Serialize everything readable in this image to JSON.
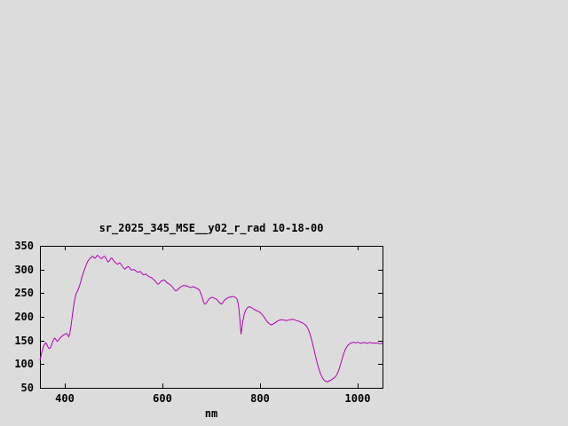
{
  "chart_data": {
    "type": "line",
    "title": "sr_2025_345_MSE__y02_r_rad 10-18-00",
    "xlabel": "nm",
    "ylabel": "",
    "xlim": [
      350,
      1050
    ],
    "ylim": [
      50,
      350
    ],
    "x_ticks": [
      400,
      600,
      800,
      1000
    ],
    "y_ticks": [
      50,
      100,
      150,
      200,
      250,
      300,
      350
    ],
    "grid": false,
    "legend_position": "none",
    "background_color": "#dcdcdc",
    "axis_color": "#000000",
    "series": [
      {
        "name": "sr_2025_345_MSE__y02_r_rad",
        "color": "#b000b0",
        "points": [
          [
            350,
            108
          ],
          [
            352,
            117
          ],
          [
            354,
            126
          ],
          [
            356,
            133
          ],
          [
            358,
            139
          ],
          [
            360,
            143
          ],
          [
            362,
            145
          ],
          [
            364,
            142
          ],
          [
            366,
            137
          ],
          [
            368,
            134
          ],
          [
            370,
            133
          ],
          [
            372,
            136
          ],
          [
            374,
            141
          ],
          [
            376,
            147
          ],
          [
            378,
            152
          ],
          [
            380,
            155
          ],
          [
            382,
            153
          ],
          [
            384,
            150
          ],
          [
            386,
            148
          ],
          [
            388,
            151
          ],
          [
            390,
            154
          ],
          [
            393,
            157
          ],
          [
            396,
            160
          ],
          [
            399,
            162
          ],
          [
            402,
            164
          ],
          [
            405,
            165
          ],
          [
            407,
            161
          ],
          [
            409,
            158
          ],
          [
            411,
            164
          ],
          [
            413,
            177
          ],
          [
            415,
            192
          ],
          [
            417,
            208
          ],
          [
            419,
            223
          ],
          [
            421,
            236
          ],
          [
            423,
            246
          ],
          [
            425,
            252
          ],
          [
            427,
            255
          ],
          [
            429,
            260
          ],
          [
            431,
            266
          ],
          [
            433,
            273
          ],
          [
            435,
            281
          ],
          [
            437,
            288
          ],
          [
            439,
            294
          ],
          [
            441,
            300
          ],
          [
            443,
            306
          ],
          [
            445,
            311
          ],
          [
            447,
            316
          ],
          [
            449,
            319
          ],
          [
            451,
            322
          ],
          [
            453,
            324
          ],
          [
            455,
            326
          ],
          [
            457,
            328
          ],
          [
            459,
            327
          ],
          [
            461,
            324
          ],
          [
            463,
            324
          ],
          [
            465,
            327
          ],
          [
            467,
            330
          ],
          [
            469,
            329
          ],
          [
            471,
            327
          ],
          [
            473,
            325
          ],
          [
            475,
            323
          ],
          [
            477,
            324
          ],
          [
            479,
            326
          ],
          [
            481,
            328
          ],
          [
            483,
            327
          ],
          [
            485,
            324
          ],
          [
            487,
            320
          ],
          [
            489,
            316
          ],
          [
            491,
            317
          ],
          [
            493,
            320
          ],
          [
            495,
            324
          ],
          [
            497,
            324
          ],
          [
            499,
            321
          ],
          [
            501,
            318
          ],
          [
            503,
            316
          ],
          [
            505,
            314
          ],
          [
            507,
            312
          ],
          [
            509,
            311
          ],
          [
            511,
            313
          ],
          [
            513,
            314
          ],
          [
            515,
            312
          ],
          [
            517,
            309
          ],
          [
            519,
            306
          ],
          [
            521,
            303
          ],
          [
            523,
            301
          ],
          [
            525,
            302
          ],
          [
            527,
            304
          ],
          [
            529,
            306
          ],
          [
            531,
            306
          ],
          [
            533,
            304
          ],
          [
            535,
            301
          ],
          [
            537,
            299
          ],
          [
            539,
            299
          ],
          [
            541,
            300
          ],
          [
            543,
            300
          ],
          [
            545,
            298
          ],
          [
            547,
            296
          ],
          [
            549,
            295
          ],
          [
            551,
            294
          ],
          [
            553,
            295
          ],
          [
            555,
            296
          ],
          [
            557,
            294
          ],
          [
            559,
            291
          ],
          [
            561,
            289
          ],
          [
            563,
            289
          ],
          [
            565,
            290
          ],
          [
            567,
            290
          ],
          [
            569,
            288
          ],
          [
            571,
            286
          ],
          [
            573,
            285
          ],
          [
            575,
            284
          ],
          [
            577,
            283
          ],
          [
            579,
            282
          ],
          [
            581,
            280
          ],
          [
            583,
            278
          ],
          [
            585,
            276
          ],
          [
            587,
            274
          ],
          [
            589,
            271
          ],
          [
            591,
            269
          ],
          [
            593,
            270
          ],
          [
            595,
            272
          ],
          [
            597,
            275
          ],
          [
            599,
            276
          ],
          [
            601,
            277
          ],
          [
            603,
            278
          ],
          [
            605,
            277
          ],
          [
            607,
            275
          ],
          [
            609,
            273
          ],
          [
            611,
            271
          ],
          [
            613,
            270
          ],
          [
            615,
            269
          ],
          [
            617,
            267
          ],
          [
            619,
            265
          ],
          [
            621,
            263
          ],
          [
            623,
            260
          ],
          [
            625,
            257
          ],
          [
            627,
            255
          ],
          [
            629,
            255
          ],
          [
            631,
            257
          ],
          [
            633,
            259
          ],
          [
            635,
            261
          ],
          [
            637,
            263
          ],
          [
            639,
            264
          ],
          [
            641,
            265
          ],
          [
            643,
            266
          ],
          [
            645,
            266
          ],
          [
            647,
            266
          ],
          [
            649,
            265
          ],
          [
            651,
            265
          ],
          [
            653,
            264
          ],
          [
            655,
            263
          ],
          [
            657,
            262
          ],
          [
            659,
            262
          ],
          [
            661,
            263
          ],
          [
            663,
            264
          ],
          [
            665,
            263
          ],
          [
            667,
            262
          ],
          [
            669,
            261
          ],
          [
            671,
            260
          ],
          [
            673,
            259
          ],
          [
            675,
            257
          ],
          [
            677,
            254
          ],
          [
            679,
            249
          ],
          [
            681,
            243
          ],
          [
            683,
            236
          ],
          [
            685,
            230
          ],
          [
            687,
            227
          ],
          [
            689,
            228
          ],
          [
            691,
            231
          ],
          [
            693,
            234
          ],
          [
            695,
            237
          ],
          [
            697,
            239
          ],
          [
            699,
            240
          ],
          [
            701,
            241
          ],
          [
            703,
            241
          ],
          [
            705,
            240
          ],
          [
            707,
            239
          ],
          [
            709,
            238
          ],
          [
            711,
            237
          ],
          [
            713,
            235
          ],
          [
            715,
            232
          ],
          [
            717,
            230
          ],
          [
            719,
            228
          ],
          [
            721,
            227
          ],
          [
            723,
            229
          ],
          [
            725,
            232
          ],
          [
            727,
            235
          ],
          [
            729,
            237
          ],
          [
            731,
            238
          ],
          [
            733,
            240
          ],
          [
            735,
            241
          ],
          [
            737,
            241
          ],
          [
            739,
            242
          ],
          [
            741,
            242
          ],
          [
            743,
            243
          ],
          [
            745,
            243
          ],
          [
            747,
            242
          ],
          [
            749,
            241
          ],
          [
            751,
            240
          ],
          [
            753,
            237
          ],
          [
            755,
            229
          ],
          [
            757,
            213
          ],
          [
            759,
            190
          ],
          [
            761,
            163
          ],
          [
            763,
            178
          ],
          [
            765,
            192
          ],
          [
            767,
            203
          ],
          [
            769,
            210
          ],
          [
            771,
            215
          ],
          [
            773,
            218
          ],
          [
            775,
            220
          ],
          [
            777,
            221
          ],
          [
            779,
            221
          ],
          [
            781,
            220
          ],
          [
            783,
            219
          ],
          [
            785,
            218
          ],
          [
            787,
            216
          ],
          [
            789,
            215
          ],
          [
            791,
            214
          ],
          [
            793,
            213
          ],
          [
            795,
            212
          ],
          [
            797,
            211
          ],
          [
            799,
            210
          ],
          [
            801,
            208
          ],
          [
            803,
            206
          ],
          [
            805,
            204
          ],
          [
            807,
            201
          ],
          [
            809,
            198
          ],
          [
            811,
            195
          ],
          [
            813,
            192
          ],
          [
            815,
            189
          ],
          [
            817,
            187
          ],
          [
            819,
            185
          ],
          [
            821,
            184
          ],
          [
            823,
            183
          ],
          [
            825,
            184
          ],
          [
            827,
            185
          ],
          [
            829,
            186
          ],
          [
            831,
            188
          ],
          [
            833,
            189
          ],
          [
            835,
            191
          ],
          [
            837,
            192
          ],
          [
            839,
            193
          ],
          [
            841,
            193
          ],
          [
            843,
            194
          ],
          [
            845,
            194
          ],
          [
            848,
            193
          ],
          [
            851,
            193
          ],
          [
            854,
            192
          ],
          [
            857,
            193
          ],
          [
            860,
            194
          ],
          [
            863,
            194
          ],
          [
            866,
            195
          ],
          [
            869,
            194
          ],
          [
            872,
            193
          ],
          [
            875,
            192
          ],
          [
            878,
            191
          ],
          [
            881,
            190
          ],
          [
            884,
            188
          ],
          [
            887,
            187
          ],
          [
            890,
            185
          ],
          [
            892,
            183
          ],
          [
            894,
            181
          ],
          [
            896,
            178
          ],
          [
            898,
            174
          ],
          [
            900,
            169
          ],
          [
            902,
            163
          ],
          [
            904,
            156
          ],
          [
            906,
            148
          ],
          [
            908,
            140
          ],
          [
            910,
            131
          ],
          [
            912,
            122
          ],
          [
            914,
            113
          ],
          [
            916,
            105
          ],
          [
            918,
            97
          ],
          [
            920,
            90
          ],
          [
            922,
            84
          ],
          [
            924,
            78
          ],
          [
            926,
            74
          ],
          [
            928,
            70
          ],
          [
            930,
            67
          ],
          [
            932,
            65
          ],
          [
            934,
            64
          ],
          [
            936,
            63
          ],
          [
            938,
            63
          ],
          [
            940,
            64
          ],
          [
            942,
            65
          ],
          [
            944,
            66
          ],
          [
            946,
            67
          ],
          [
            948,
            69
          ],
          [
            950,
            70
          ],
          [
            952,
            72
          ],
          [
            954,
            74
          ],
          [
            956,
            77
          ],
          [
            958,
            81
          ],
          [
            960,
            86
          ],
          [
            962,
            92
          ],
          [
            964,
            99
          ],
          [
            966,
            106
          ],
          [
            968,
            113
          ],
          [
            970,
            120
          ],
          [
            972,
            126
          ],
          [
            974,
            131
          ],
          [
            976,
            135
          ],
          [
            978,
            138
          ],
          [
            980,
            141
          ],
          [
            982,
            142
          ],
          [
            984,
            144
          ],
          [
            986,
            145
          ],
          [
            988,
            145
          ],
          [
            990,
            146
          ],
          [
            992,
            146
          ],
          [
            994,
            145
          ],
          [
            996,
            145
          ],
          [
            998,
            146
          ],
          [
            1000,
            146
          ],
          [
            1003,
            145
          ],
          [
            1006,
            144
          ],
          [
            1009,
            145
          ],
          [
            1012,
            146
          ],
          [
            1015,
            145
          ],
          [
            1018,
            144
          ],
          [
            1021,
            145
          ],
          [
            1024,
            146
          ],
          [
            1027,
            145
          ],
          [
            1030,
            144
          ],
          [
            1033,
            145
          ],
          [
            1036,
            144
          ],
          [
            1039,
            145
          ],
          [
            1042,
            144
          ],
          [
            1045,
            143
          ],
          [
            1048,
            144
          ],
          [
            1050,
            144
          ]
        ]
      }
    ]
  }
}
